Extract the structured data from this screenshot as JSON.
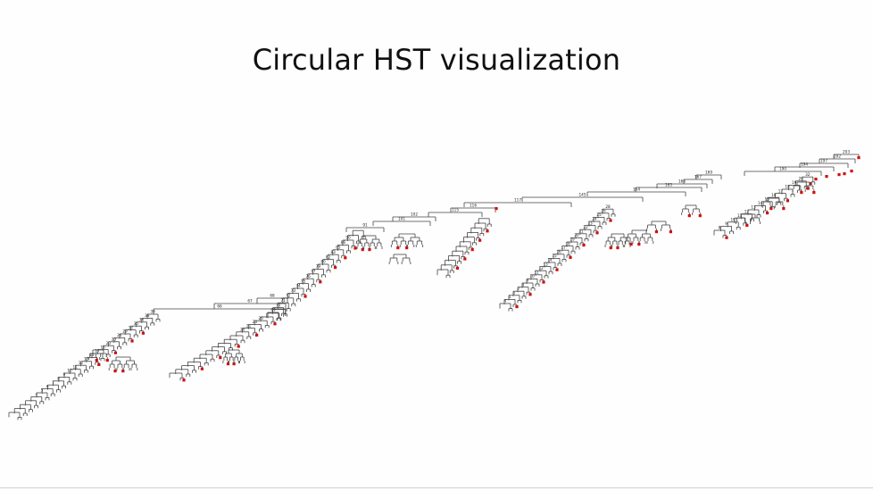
{
  "slide": {
    "title": "Circular HST visualization"
  },
  "colors": {
    "edge": "#444444",
    "highlight_leaf": "#d10f0f",
    "label": "#222222",
    "background": "#fefefe"
  },
  "tree": {
    "spine_labels": [
      "203",
      "202",
      "197",
      "194",
      "190",
      "169",
      "167",
      "166",
      "165",
      "164",
      "145",
      "117",
      "116",
      "115",
      "102",
      "101",
      "91",
      "68"
    ],
    "left_branch_labels": [
      "67",
      "66",
      "39",
      "38",
      "36",
      "35",
      "33",
      "29",
      "26",
      "23",
      "20",
      "18",
      "17",
      "15",
      "13",
      "12",
      "11",
      "10",
      "9",
      "8",
      "7",
      "6",
      "5",
      "4"
    ],
    "middle_branch_labels": [
      "90",
      "86",
      "85",
      "83",
      "82",
      "80",
      "79",
      "77",
      "76",
      "75",
      "74",
      "73",
      "72",
      "71",
      "70",
      "69",
      "25",
      "23",
      "21",
      "20",
      "17",
      "14",
      "12",
      "11",
      "9"
    ],
    "right_mid_labels": [
      "28",
      "26",
      "25",
      "24",
      "23",
      "22",
      "21",
      "20",
      "19",
      "18",
      "17",
      "16",
      "15",
      "14",
      "13",
      "12",
      "11",
      "10",
      "9",
      "8",
      "7",
      "6",
      "5",
      "4"
    ],
    "right_labels": [
      "32",
      "20",
      "19",
      "18",
      "17",
      "16",
      "15",
      "14",
      "13",
      "12",
      "11",
      "10",
      "9",
      "8",
      "7",
      "6",
      "5",
      "4"
    ]
  }
}
